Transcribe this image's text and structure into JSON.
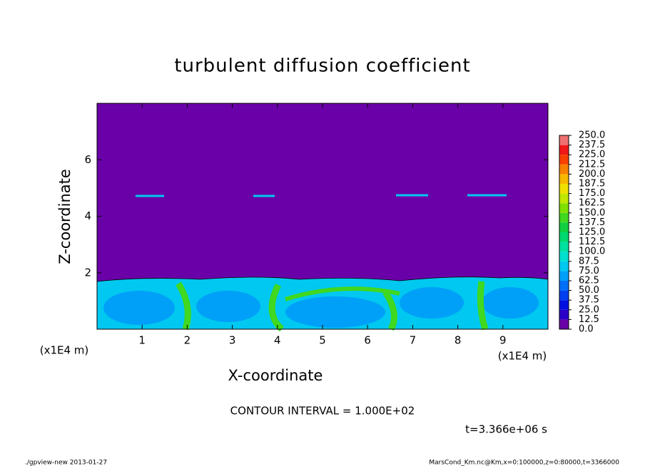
{
  "chart_data": {
    "type": "contour",
    "title": "turbulent diffusion coefficient",
    "xlabel": "X-coordinate",
    "ylabel": "Z-coordinate",
    "x_unit": "(x1E4 m)",
    "xlim": [
      0,
      10
    ],
    "ylim": [
      0,
      8
    ],
    "xticks": [
      1,
      2,
      3,
      4,
      5,
      6,
      7,
      8,
      9
    ],
    "yticks": [
      2,
      4,
      6
    ],
    "colorbar": {
      "levels": [
        {
          "value": 0,
          "label": "0.0"
        },
        {
          "value": 12.5,
          "label": "12.5"
        },
        {
          "value": 25,
          "label": "25.0"
        },
        {
          "value": 37.5,
          "label": "37.5"
        },
        {
          "value": 50,
          "label": "50.0"
        },
        {
          "value": 62.5,
          "label": "62.5"
        },
        {
          "value": 75,
          "label": "75.0"
        },
        {
          "value": 87.5,
          "label": "87.5"
        },
        {
          "value": 100,
          "label": "100.0"
        },
        {
          "value": 112.5,
          "label": "112.5"
        },
        {
          "value": 125,
          "label": "125.0"
        },
        {
          "value": 137.5,
          "label": "137.5"
        },
        {
          "value": 150,
          "label": "150.0"
        },
        {
          "value": 162.5,
          "label": "162.5"
        },
        {
          "value": 175,
          "label": "175.0"
        },
        {
          "value": 187.5,
          "label": "187.5"
        },
        {
          "value": 200,
          "label": "200.0"
        },
        {
          "value": 212.5,
          "label": "212.5"
        },
        {
          "value": 225,
          "label": "225.0"
        },
        {
          "value": 237.5,
          "label": "237.5"
        },
        {
          "value": 250,
          "label": "250.0"
        }
      ],
      "colors": [
        "#6a00a8",
        "#2a00c8",
        "#0010e0",
        "#0040f0",
        "#0070f8",
        "#00a0f8",
        "#00c8f0",
        "#00e0d0",
        "#00e0a0",
        "#00d870",
        "#10d040",
        "#40d820",
        "#80e000",
        "#c0e800",
        "#f0e000",
        "#f8b800",
        "#f88000",
        "#f84000",
        "#f01818",
        "#f07070"
      ]
    },
    "annotations": [
      "CONTOUR INTERVAL = 1.000E+02",
      "t=3.366e+06 s"
    ],
    "footer_left": "./gpview-new  2013-01-27",
    "footer_right": "MarsCond_Km.nc@Km,x=0:100000,z=0:80000,t=3366000"
  }
}
